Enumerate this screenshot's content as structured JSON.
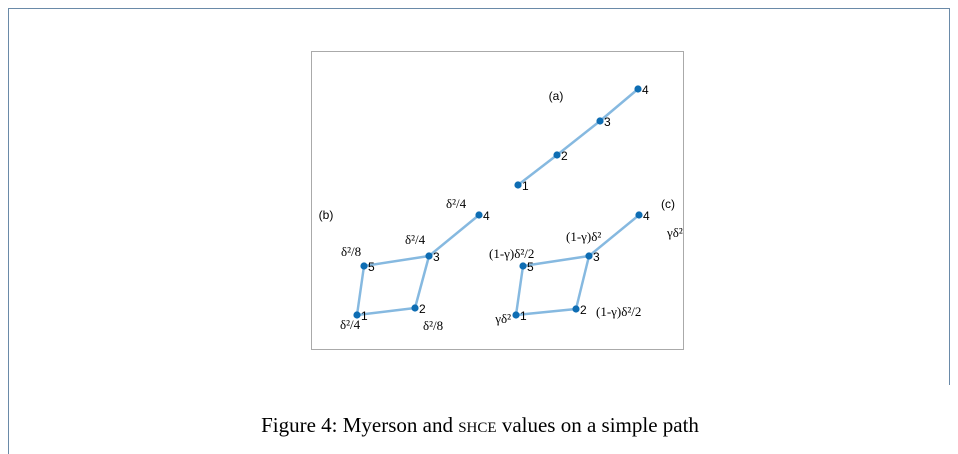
{
  "figure": {
    "panels": [
      {
        "label": "(a)",
        "nodes": [
          "1",
          "2",
          "3",
          "4"
        ],
        "annotations": []
      },
      {
        "label": "(b)",
        "nodes": [
          "1",
          "2",
          "3",
          "4",
          "5"
        ],
        "annotations": [
          "δ²/4",
          "δ²/8",
          "δ²/4",
          "δ²/4",
          "δ²/8"
        ]
      },
      {
        "label": "(c)",
        "nodes": [
          "1",
          "2",
          "3",
          "4",
          "5"
        ],
        "annotations": [
          "γδ²",
          "(1-γ)δ²/2",
          "(1-γ)δ²",
          "γδ²",
          "(1-γ)δ²/2"
        ]
      }
    ]
  },
  "caption": {
    "prefix": "Figure 4: Myerson and ",
    "smallcaps": "shce",
    "suffix": " values on a simple path"
  }
}
